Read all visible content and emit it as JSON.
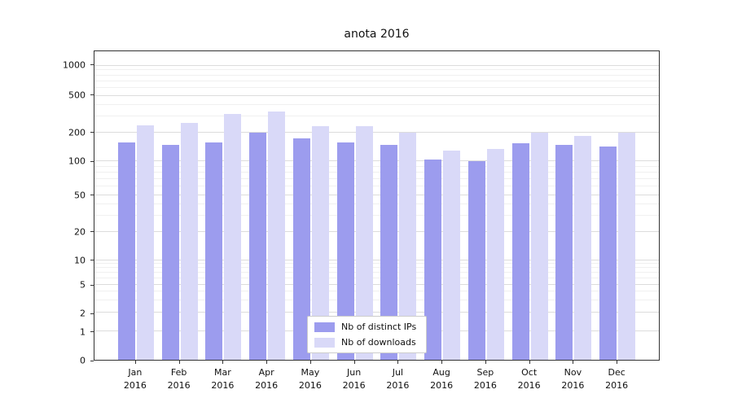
{
  "chart_data": {
    "type": "bar",
    "title": "anota 2016",
    "categories": [
      "Jan 2016",
      "Feb 2016",
      "Mar 2016",
      "Apr 2016",
      "May 2016",
      "Jun 2016",
      "Jul 2016",
      "Aug 2016",
      "Sep 2016",
      "Oct 2016",
      "Nov 2016",
      "Dec 2016"
    ],
    "series": [
      {
        "name": "Nb of distinct IPs",
        "color": "#9c9cee",
        "values": [
          160,
          150,
          160,
          200,
          175,
          160,
          150,
          105,
          100,
          155,
          150,
          145
        ]
      },
      {
        "name": "Nb of downloads",
        "color": "#d9d9f8",
        "values": [
          240,
          255,
          320,
          340,
          235,
          235,
          200,
          130,
          135,
          200,
          185,
          200
        ]
      }
    ],
    "yticks": [
      0,
      1,
      2,
      5,
      10,
      20,
      50,
      100,
      200,
      500,
      1000
    ],
    "yscale": "log",
    "ylim": [
      0,
      1200
    ],
    "xlabel": "",
    "ylabel": "",
    "grid": true,
    "legend_position": "lower center"
  }
}
